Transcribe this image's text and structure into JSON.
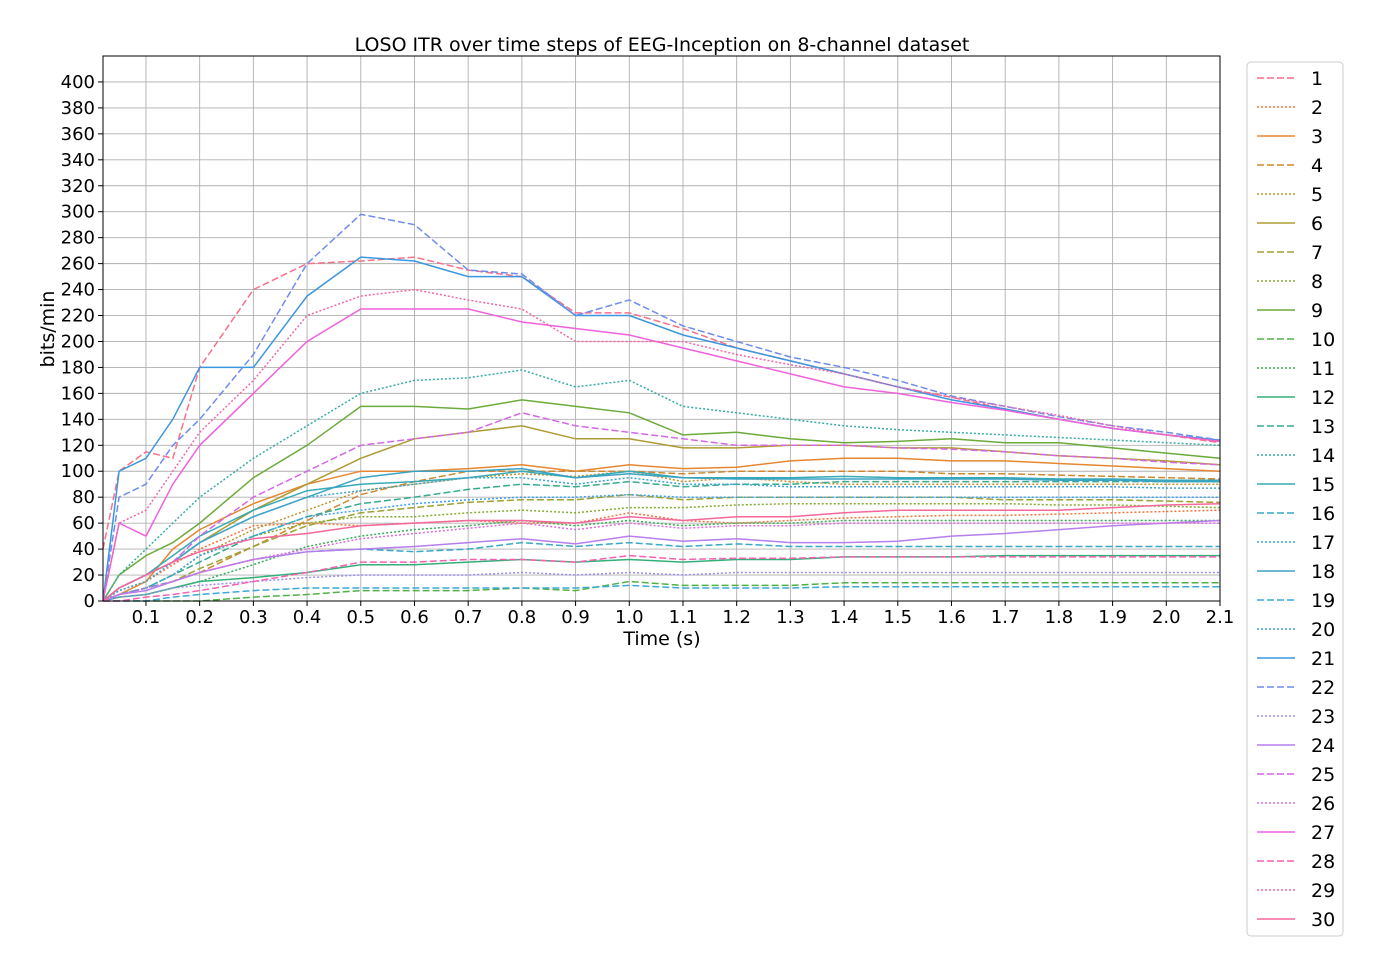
{
  "chart_data": {
    "type": "line",
    "title": "LOSO ITR over time steps of EEG-Inception on 8-channel dataset",
    "xlabel": "Time (s)",
    "ylabel": "bits/min",
    "xlim": [
      0.02,
      2.1
    ],
    "ylim": [
      0,
      420
    ],
    "x_ticks": [
      0.1,
      0.2,
      0.3,
      0.4,
      0.5,
      0.6,
      0.7,
      0.8,
      0.9,
      1.0,
      1.1,
      1.2,
      1.3,
      1.4,
      1.5,
      1.6,
      1.7,
      1.8,
      1.9,
      2.0,
      2.1
    ],
    "x_tick_labels": [
      "0.1",
      "0.2",
      "0.3",
      "0.4",
      "0.5",
      "0.6",
      "0.7",
      "0.8",
      "0.9",
      "1.0",
      "1.1",
      "1.2",
      "1.3",
      "1.4",
      "1.5",
      "1.6",
      "1.7",
      "1.8",
      "1.9",
      "2.0",
      "2.1"
    ],
    "y_ticks": [
      0,
      20,
      40,
      60,
      80,
      100,
      120,
      140,
      160,
      180,
      200,
      220,
      240,
      260,
      280,
      300,
      320,
      340,
      360,
      380,
      400
    ],
    "y_tick_labels": [
      "0",
      "20",
      "40",
      "60",
      "80",
      "100",
      "120",
      "140",
      "160",
      "180",
      "200",
      "220",
      "240",
      "260",
      "280",
      "300",
      "320",
      "340",
      "360",
      "380",
      "400"
    ],
    "grid": true,
    "legend_position": "right-outside",
    "x": [
      0.02,
      0.05,
      0.1,
      0.15,
      0.2,
      0.3,
      0.4,
      0.5,
      0.6,
      0.7,
      0.8,
      0.9,
      1.0,
      1.1,
      1.2,
      1.3,
      1.4,
      1.5,
      1.6,
      1.7,
      1.8,
      1.9,
      2.0,
      2.1
    ],
    "series": [
      {
        "name": "1",
        "color": "#f77189",
        "dash": "dashed",
        "values": [
          40,
          100,
          115,
          110,
          180,
          240,
          260,
          262,
          265,
          255,
          250,
          222,
          222,
          210,
          195,
          185,
          175,
          165,
          157,
          148,
          140,
          133,
          128,
          122
        ]
      },
      {
        "name": "2",
        "color": "#f3733c",
        "dash": "dotted",
        "values": [
          0,
          8,
          15,
          28,
          40,
          58,
          60,
          58,
          60,
          62,
          60,
          60,
          68,
          62,
          60,
          62,
          64,
          65,
          66,
          66,
          67,
          68,
          69,
          70
        ]
      },
      {
        "name": "3",
        "color": "#e58732",
        "dash": "solid",
        "values": [
          0,
          5,
          15,
          40,
          55,
          75,
          90,
          100,
          100,
          102,
          105,
          100,
          105,
          102,
          103,
          108,
          110,
          110,
          108,
          108,
          106,
          104,
          102,
          100
        ]
      },
      {
        "name": "4",
        "color": "#d0882f",
        "dash": "dashed",
        "values": [
          0,
          5,
          10,
          15,
          22,
          42,
          62,
          82,
          92,
          100,
          100,
          100,
          100,
          98,
          100,
          100,
          100,
          100,
          98,
          98,
          97,
          96,
          95,
          94
        ]
      },
      {
        "name": "5",
        "color": "#c0942f",
        "dash": "dotted",
        "values": [
          0,
          5,
          10,
          20,
          35,
          55,
          70,
          85,
          90,
          95,
          98,
          96,
          100,
          92,
          95,
          92,
          90,
          90,
          90,
          90,
          90,
          90,
          90,
          90
        ]
      },
      {
        "name": "6",
        "color": "#b09b32",
        "dash": "solid",
        "values": [
          0,
          10,
          20,
          30,
          45,
          70,
          90,
          110,
          125,
          130,
          135,
          125,
          125,
          118,
          118,
          120,
          120,
          118,
          118,
          115,
          112,
          110,
          108,
          105
        ]
      },
      {
        "name": "7",
        "color": "#9da332",
        "dash": "dashed",
        "values": [
          0,
          5,
          10,
          15,
          25,
          42,
          58,
          68,
          72,
          76,
          78,
          78,
          82,
          78,
          80,
          80,
          80,
          80,
          80,
          78,
          78,
          78,
          77,
          76
        ]
      },
      {
        "name": "8",
        "color": "#86aa32",
        "dash": "dotted",
        "values": [
          0,
          5,
          10,
          20,
          35,
          50,
          60,
          65,
          65,
          68,
          70,
          68,
          72,
          72,
          74,
          75,
          75,
          75,
          75,
          75,
          74,
          74,
          73,
          72
        ]
      },
      {
        "name": "9",
        "color": "#6bab3a",
        "dash": "solid",
        "values": [
          0,
          20,
          35,
          45,
          60,
          95,
          120,
          150,
          150,
          148,
          155,
          150,
          145,
          128,
          130,
          125,
          122,
          123,
          125,
          122,
          122,
          118,
          114,
          110
        ]
      },
      {
        "name": "10",
        "color": "#50b148",
        "dash": "dashed",
        "values": [
          0,
          0,
          0,
          0,
          0,
          3,
          5,
          8,
          8,
          8,
          10,
          8,
          15,
          12,
          12,
          12,
          14,
          14,
          14,
          14,
          14,
          14,
          14,
          14
        ]
      },
      {
        "name": "11",
        "color": "#36ad57",
        "dash": "dotted",
        "values": [
          0,
          3,
          5,
          10,
          15,
          28,
          42,
          50,
          55,
          58,
          62,
          58,
          62,
          58,
          60,
          60,
          62,
          62,
          62,
          62,
          62,
          62,
          62,
          62
        ]
      },
      {
        "name": "12",
        "color": "#34af78",
        "dash": "solid",
        "values": [
          0,
          3,
          5,
          10,
          15,
          18,
          22,
          28,
          28,
          30,
          32,
          30,
          32,
          30,
          32,
          32,
          34,
          34,
          34,
          35,
          35,
          35,
          35,
          35
        ]
      },
      {
        "name": "13",
        "color": "#35ab8f",
        "dash": "dashed",
        "values": [
          0,
          5,
          10,
          20,
          30,
          50,
          65,
          75,
          80,
          86,
          90,
          88,
          92,
          88,
          90,
          90,
          92,
          92,
          92,
          92,
          92,
          92,
          92,
          92
        ]
      },
      {
        "name": "14",
        "color": "#36ada4",
        "dash": "dotted",
        "values": [
          0,
          20,
          40,
          60,
          80,
          110,
          135,
          160,
          170,
          172,
          178,
          165,
          170,
          150,
          145,
          140,
          135,
          132,
          130,
          128,
          126,
          124,
          122,
          120
        ]
      },
      {
        "name": "15",
        "color": "#37aab7",
        "dash": "solid",
        "values": [
          0,
          10,
          20,
          35,
          50,
          70,
          85,
          90,
          92,
          95,
          100,
          95,
          100,
          95,
          95,
          95,
          96,
          95,
          95,
          95,
          94,
          94,
          93,
          93
        ]
      },
      {
        "name": "16",
        "color": "#39a9c6",
        "dash": "dashed",
        "values": [
          0,
          5,
          10,
          15,
          22,
          32,
          38,
          40,
          38,
          40,
          45,
          42,
          45,
          42,
          44,
          42,
          42,
          42,
          42,
          42,
          42,
          42,
          42,
          42
        ]
      },
      {
        "name": "17",
        "color": "#3ba3ec",
        "dash": "dotted",
        "values": [
          0,
          5,
          10,
          20,
          35,
          50,
          65,
          70,
          75,
          78,
          80,
          80,
          82,
          80,
          80,
          80,
          80,
          80,
          80,
          80,
          80,
          80,
          80,
          80
        ]
      },
      {
        "name": "18",
        "color": "#3aa2c4",
        "dash": "solid",
        "values": [
          0,
          10,
          20,
          30,
          45,
          65,
          80,
          95,
          100,
          100,
          102,
          95,
          98,
          95,
          94,
          94,
          94,
          94,
          94,
          94,
          93,
          93,
          92,
          92
        ]
      },
      {
        "name": "19",
        "color": "#3ca8d8",
        "dash": "dashed",
        "values": [
          0,
          0,
          0,
          3,
          5,
          8,
          10,
          10,
          10,
          10,
          10,
          10,
          12,
          10,
          10,
          10,
          11,
          11,
          11,
          11,
          11,
          11,
          11,
          11
        ]
      },
      {
        "name": "20",
        "color": "#3aa5d0",
        "dash": "dotted",
        "values": [
          0,
          8,
          15,
          30,
          45,
          65,
          80,
          85,
          90,
          95,
          95,
          90,
          95,
          90,
          90,
          88,
          88,
          88,
          88,
          88,
          88,
          88,
          87,
          87
        ]
      },
      {
        "name": "21",
        "color": "#3b96e0",
        "dash": "solid",
        "values": [
          0,
          100,
          110,
          140,
          180,
          180,
          235,
          265,
          262,
          250,
          250,
          220,
          220,
          205,
          195,
          185,
          175,
          165,
          155,
          148,
          140,
          133,
          128,
          124
        ]
      },
      {
        "name": "22",
        "color": "#6e8cf0",
        "dash": "dashed",
        "values": [
          0,
          80,
          90,
          120,
          140,
          190,
          260,
          298,
          290,
          255,
          252,
          220,
          232,
          212,
          200,
          188,
          180,
          170,
          158,
          150,
          142,
          135,
          130,
          124
        ]
      },
      {
        "name": "23",
        "color": "#9b8cf5",
        "dash": "dotted",
        "values": [
          0,
          3,
          5,
          10,
          12,
          15,
          18,
          20,
          20,
          20,
          22,
          20,
          22,
          20,
          22,
          22,
          22,
          22,
          22,
          22,
          22,
          22,
          22,
          22
        ]
      },
      {
        "name": "24",
        "color": "#b77eed",
        "dash": "solid",
        "values": [
          0,
          5,
          8,
          15,
          22,
          32,
          38,
          40,
          42,
          45,
          48,
          44,
          50,
          46,
          48,
          45,
          45,
          46,
          50,
          52,
          55,
          58,
          60,
          62
        ]
      },
      {
        "name": "25",
        "color": "#d467e6",
        "dash": "dashed",
        "values": [
          0,
          10,
          20,
          30,
          50,
          80,
          100,
          120,
          125,
          130,
          145,
          135,
          130,
          125,
          120,
          120,
          120,
          118,
          117,
          115,
          112,
          110,
          107,
          105
        ]
      },
      {
        "name": "26",
        "color": "#df6ddf",
        "dash": "dotted",
        "values": [
          0,
          5,
          10,
          15,
          22,
          32,
          40,
          48,
          52,
          56,
          60,
          55,
          60,
          56,
          58,
          58,
          60,
          60,
          60,
          60,
          60,
          60,
          60,
          60
        ]
      },
      {
        "name": "27",
        "color": "#f061dd",
        "dash": "solid",
        "values": [
          0,
          60,
          50,
          90,
          120,
          160,
          200,
          225,
          225,
          225,
          215,
          210,
          205,
          195,
          185,
          175,
          165,
          160,
          153,
          147,
          140,
          133,
          128,
          123
        ]
      },
      {
        "name": "28",
        "color": "#f461b2",
        "dash": "dashed",
        "values": [
          0,
          0,
          3,
          5,
          8,
          15,
          22,
          30,
          30,
          32,
          32,
          30,
          35,
          32,
          33,
          33,
          34,
          34,
          34,
          34,
          34,
          34,
          34,
          34
        ]
      },
      {
        "name": "29",
        "color": "#f565a9",
        "dash": "dotted",
        "values": [
          0,
          60,
          70,
          100,
          130,
          170,
          220,
          235,
          240,
          232,
          225,
          200,
          200,
          200,
          190,
          182,
          175,
          165,
          157,
          150,
          143,
          135,
          128,
          123
        ]
      },
      {
        "name": "30",
        "color": "#f6679b",
        "dash": "solid",
        "values": [
          0,
          10,
          20,
          30,
          38,
          48,
          52,
          58,
          60,
          62,
          62,
          60,
          65,
          62,
          65,
          65,
          68,
          70,
          70,
          70,
          70,
          72,
          74,
          75
        ]
      }
    ]
  }
}
